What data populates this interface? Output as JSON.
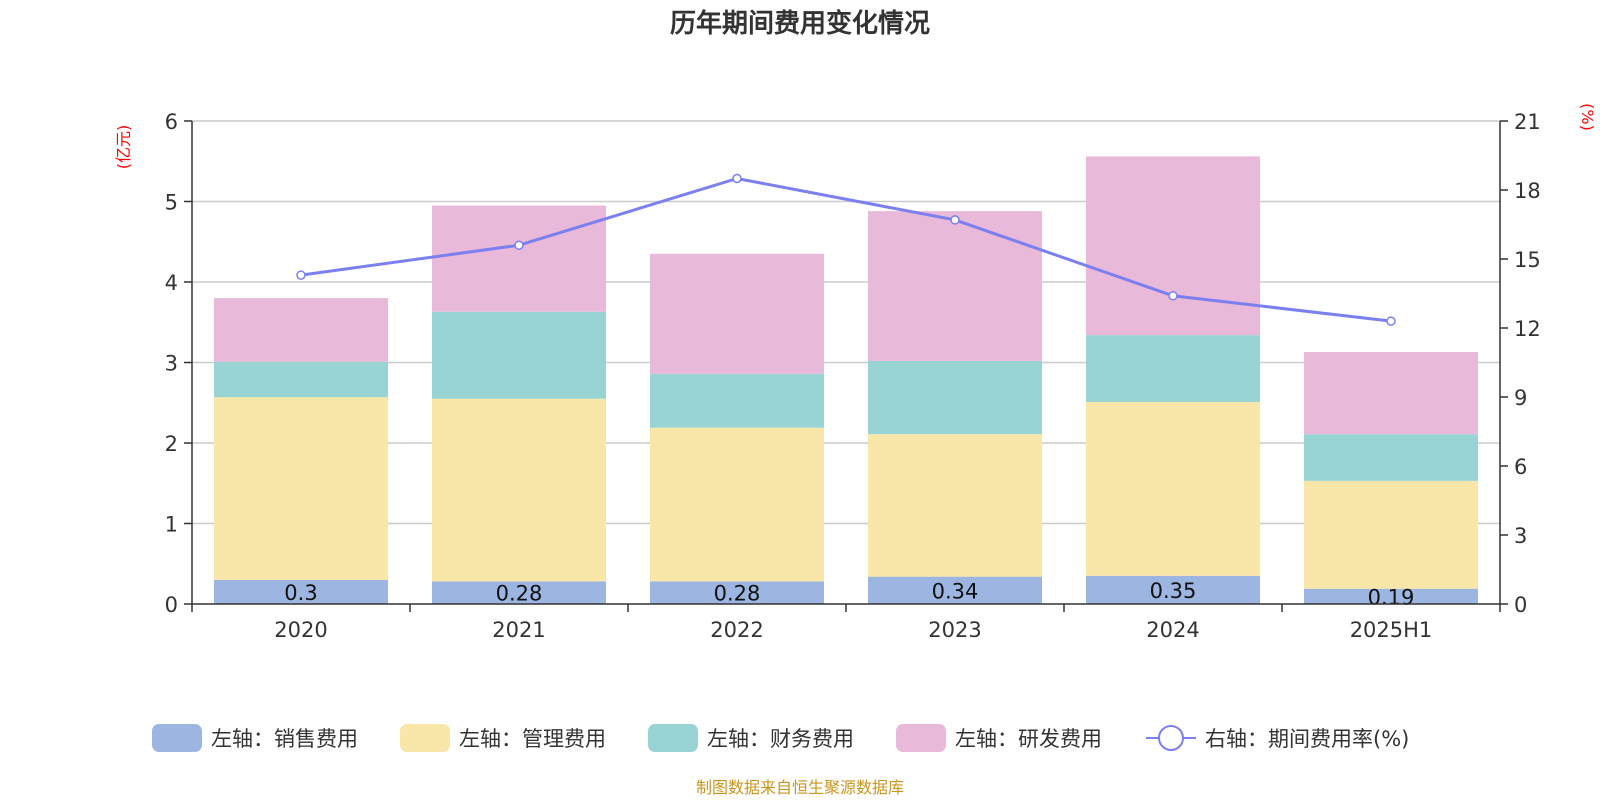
{
  "chart_data": {
    "type": "bar",
    "title": "历年期间费用变化情况",
    "categories": [
      "2020",
      "2021",
      "2022",
      "2023",
      "2024",
      "2025H1"
    ],
    "left_axis": {
      "unit": "(亿元)",
      "min": 0,
      "max": 6,
      "ticks": [
        0,
        1,
        2,
        3,
        4,
        5,
        6
      ]
    },
    "right_axis": {
      "unit": "(%)",
      "min": 0,
      "max": 21,
      "ticks": [
        0,
        3,
        6,
        9,
        12,
        15,
        18,
        21
      ]
    },
    "grid": true,
    "legend_position": "bottom",
    "series": [
      {
        "name": "左轴：销售费用",
        "type": "bar",
        "axis": "left",
        "color": "#9cb5e1",
        "values": [
          0.3,
          0.28,
          0.28,
          0.34,
          0.35,
          0.19
        ],
        "labels": [
          "0.3",
          "0.28",
          "0.28",
          "0.34",
          "0.35",
          "0.19"
        ]
      },
      {
        "name": "左轴：管理费用",
        "type": "bar",
        "axis": "left",
        "color": "#f8e7a8",
        "values": [
          2.27,
          2.27,
          1.91,
          1.77,
          2.16,
          1.34
        ]
      },
      {
        "name": "左轴：财务费用",
        "type": "bar",
        "axis": "left",
        "color": "#98d4d4",
        "values": [
          0.44,
          1.08,
          0.67,
          0.91,
          0.83,
          0.58
        ]
      },
      {
        "name": "左轴：研发费用",
        "type": "bar",
        "axis": "left",
        "color": "#e8b9d8",
        "values": [
          0.79,
          1.32,
          1.49,
          1.86,
          2.22,
          1.02
        ]
      },
      {
        "name": "右轴：期间费用率(%)",
        "type": "line",
        "axis": "right",
        "color": "#7b7ff0",
        "values": [
          14.3,
          15.6,
          18.5,
          16.7,
          13.4,
          12.3
        ]
      }
    ]
  },
  "source": "制图数据来自恒生聚源数据库"
}
